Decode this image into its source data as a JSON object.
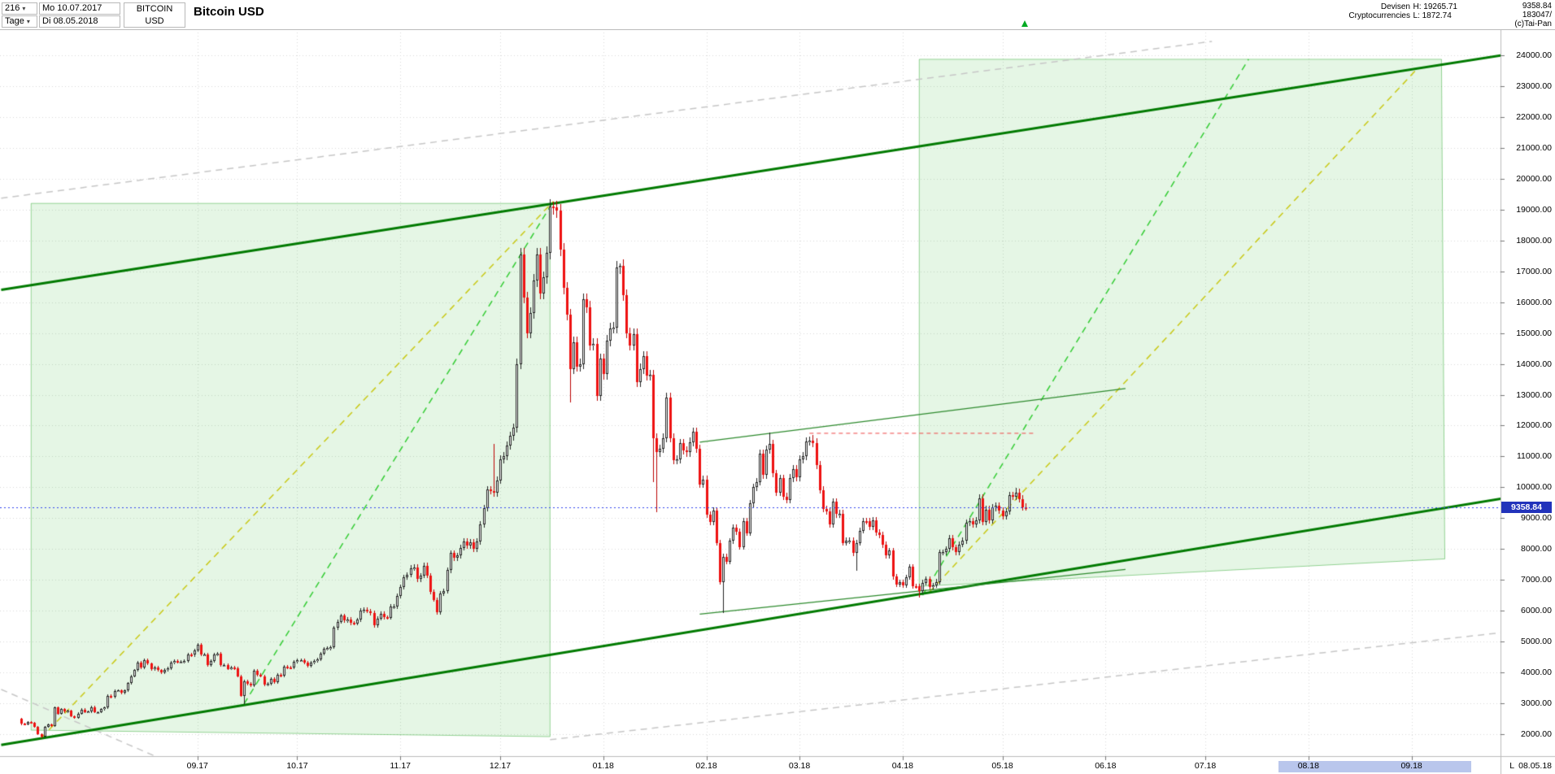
{
  "header": {
    "period": "216",
    "timeframe": "Tage",
    "start_date": "Mo 10.07.2017",
    "end_date": "Di 08.05.2018",
    "symbol": "BITCOIN",
    "currency": "USD",
    "title": "Bitcoin USD",
    "category": "Devisen",
    "subcategory": "Cryptocurrencies",
    "high_label": "H: 19265.71",
    "low_label": "L: 1872.74",
    "last_price": "9358.84",
    "volume_text": "183047/",
    "copyright": "(c)Tai-Pan"
  },
  "axes": {
    "price_ticks": [
      "24000.00",
      "23000.00",
      "22000.00",
      "21000.00",
      "20000.00",
      "19000.00",
      "18000.00",
      "17000.00",
      "16000.00",
      "15000.00",
      "14000.00",
      "13000.00",
      "12000.00",
      "11000.00",
      "10000.00",
      "9000.00",
      "8000.00",
      "7000.00",
      "6000.00",
      "5000.00",
      "4000.00",
      "3000.00",
      "2000.00"
    ],
    "current_price_label": "9358.84",
    "time_ticks": [
      {
        "label": "09.17",
        "day": 53
      },
      {
        "label": "10.17",
        "day": 83
      },
      {
        "label": "11.17",
        "day": 114
      },
      {
        "label": "12.17",
        "day": 144
      },
      {
        "label": "01.18",
        "day": 175
      },
      {
        "label": "02.18",
        "day": 206
      },
      {
        "label": "03.18",
        "day": 234
      },
      {
        "label": "04.18",
        "day": 265
      },
      {
        "label": "05.18",
        "day": 295
      },
      {
        "label": "06.18",
        "day": 326
      },
      {
        "label": "07.18",
        "day": 356
      },
      {
        "label": "08.18",
        "day": 387
      },
      {
        "label": "09.18",
        "day": 418
      }
    ],
    "range_highlight": {
      "start_day": 378,
      "end_day": 436
    },
    "corner_label": "L",
    "corner_date": "08.05.18"
  },
  "chart_data": {
    "type": "candlestick",
    "title": "Bitcoin USD",
    "period_start": "10.07.2017",
    "period_end": "08.05.2018",
    "timeframe": "daily",
    "overall_high": 19265.71,
    "overall_low": 1872.74,
    "last_close": 9358.84,
    "ylim": [
      2000,
      24000
    ],
    "first_open": 2506,
    "closes": [
      2330,
      2320,
      2390,
      2360,
      2230,
      1995,
      1910,
      2230,
      2320,
      2270,
      2860,
      2670,
      2810,
      2730,
      2760,
      2580,
      2530,
      2670,
      2800,
      2720,
      2730,
      2880,
      2710,
      2710,
      2810,
      2860,
      3250,
      3210,
      3400,
      3420,
      3340,
      3420,
      3650,
      3880,
      4070,
      4330,
      4160,
      4390,
      4280,
      4110,
      4160,
      4070,
      4000,
      4090,
      4140,
      4330,
      4360,
      4340,
      4350,
      4380,
      4580,
      4570,
      4710,
      4900,
      4580,
      4580,
      4230,
      4380,
      4580,
      4600,
      4230,
      4230,
      4120,
      4160,
      4130,
      3880,
      3250,
      3710,
      3630,
      3580,
      4060,
      3920,
      3880,
      3600,
      3630,
      3790,
      3680,
      3930,
      3890,
      4200,
      4170,
      4160,
      4340,
      4400,
      4400,
      4320,
      4220,
      4320,
      4370,
      4430,
      4610,
      4770,
      4780,
      4820,
      5440,
      5640,
      5840,
      5680,
      5720,
      5600,
      5590,
      5710,
      6010,
      6030,
      5990,
      5930,
      5530,
      5750,
      5900,
      5790,
      5780,
      6130,
      6130,
      6470,
      6770,
      7080,
      7160,
      7380,
      7410,
      7020,
      7140,
      7460,
      7140,
      6620,
      6360,
      5950,
      6560,
      6640,
      7310,
      7870,
      7710,
      7790,
      8040,
      8250,
      8100,
      8230,
      8010,
      8250,
      8790,
      9330,
      9920,
      9880,
      9820,
      10230,
      10900,
      11000,
      11350,
      11660,
      11920,
      14000,
      17550,
      16150,
      15000,
      15650,
      16700,
      17550,
      16290,
      16800,
      17600,
      19100,
      19065,
      18960,
      17700,
      16460,
      15600,
      13830,
      14700,
      13920,
      14000,
      16100,
      15840,
      14600,
      14650,
      12950,
      14160,
      13660,
      14750,
      15160,
      15180,
      17130,
      17170,
      16230,
      15000,
      14600,
      14970,
      13400,
      13840,
      14240,
      13630,
      13650,
      11600,
      11130,
      11250,
      11600,
      12900,
      11600,
      10870,
      10900,
      11430,
      11200,
      11130,
      11470,
      11790,
      11250,
      10100,
      10250,
      9120,
      8870,
      9250,
      8200,
      6940,
      7750,
      7590,
      8260,
      8690,
      8560,
      8070,
      8900,
      8520,
      9470,
      10000,
      10180,
      11100,
      10400,
      11220,
      11400,
      10450,
      9830,
      10290,
      9700,
      9590,
      10300,
      10590,
      10330,
      10910,
      11020,
      11490,
      11510,
      11440,
      10730,
      9910,
      9300,
      9230,
      8790,
      9530,
      9130,
      9150,
      8200,
      8270,
      8280,
      7870,
      8200,
      8600,
      8910,
      8900,
      8720,
      8930,
      8540,
      8450,
      8140,
      7790,
      7950,
      7100,
      6840,
      6930,
      6820,
      7080,
      7420,
      6800,
      6790,
      6630,
      6910,
      7020,
      6770,
      6830,
      6940,
      7890,
      7890,
      8000,
      8350,
      8050,
      7890,
      8150,
      8270,
      8860,
      8900,
      8800,
      8930,
      9650,
      8870,
      9280,
      8940,
      9340,
      9400,
      9240,
      9070,
      9220,
      9740,
      9700,
      9830,
      9620,
      9360,
      9358.84
    ],
    "wick_high_overrides": {
      "142": 11400,
      "160": 19265.71,
      "180": 17253,
      "225": 11780,
      "238": 11700,
      "299": 9990
    },
    "wick_low_overrides": {
      "6": 1872.74,
      "67": 2980,
      "165": 12760,
      "190": 10160,
      "191": 9200,
      "211": 5920,
      "251": 7300,
      "270": 6430
    },
    "default_wick_pct": 0.012,
    "overlays": {
      "channel_lines": [
        {
          "name": "upper-trend-channel",
          "from": [
            -6,
            16400
          ],
          "to": [
            445,
            24000
          ]
        },
        {
          "name": "lower-trend-channel",
          "from": [
            -6,
            1650
          ],
          "to": [
            445,
            9630
          ]
        }
      ],
      "regions": [
        {
          "name": "left-projection-zone",
          "points": [
            [
              3,
              19200
            ],
            [
              159,
              19200
            ],
            [
              159,
              1920
            ],
            [
              3,
              2130
            ]
          ]
        },
        {
          "name": "right-projection-zone",
          "points": [
            [
              270,
              23870
            ],
            [
              427,
              23870
            ],
            [
              428,
              7680
            ],
            [
              270,
              6790
            ]
          ]
        }
      ],
      "dashed_lines": [
        {
          "name": "yellow-fan-left",
          "color": "#c8c814",
          "from": [
            6,
            1872.74
          ],
          "to": [
            160,
            19265.71
          ]
        },
        {
          "name": "green-fan-left",
          "color": "#33cc33",
          "from": [
            67,
            2980
          ],
          "to": [
            160,
            19265.71
          ]
        },
        {
          "name": "green-fan-right",
          "color": "#33cc33",
          "from": [
            271,
            6500
          ],
          "to": [
            369,
            23870
          ]
        },
        {
          "name": "yellow-fan-right",
          "color": "#c8c814",
          "from": [
            273,
            6600
          ],
          "to": [
            420,
            23600
          ]
        },
        {
          "name": "gray-parallel-top",
          "color": "#c6c6c6",
          "from": [
            -6,
            19370
          ],
          "to": [
            358,
            24450
          ]
        },
        {
          "name": "gray-parallel-bottom",
          "color": "#c6c6c6",
          "from": [
            159,
            1820
          ],
          "to": [
            445,
            5290
          ]
        },
        {
          "name": "gray-corner",
          "color": "#c6c6c6",
          "from": [
            -6,
            3450
          ],
          "to": [
            40,
            1300
          ]
        }
      ],
      "minor_lines": [
        {
          "name": "consolidation-upper",
          "color": "#2d8a2d",
          "from": [
            204,
            11460
          ],
          "to": [
            332,
            13200
          ]
        },
        {
          "name": "consolidation-lower",
          "color": "#2d8a2d",
          "from": [
            204,
            5890
          ],
          "to": [
            332,
            7340
          ]
        }
      ],
      "red_dashed_line": {
        "name": "resistance-level",
        "color": "#ee4444",
        "price": 11750,
        "from_day": 237,
        "to_day": 305
      },
      "current_price_line": {
        "price": 9358.84,
        "color": "#3344ee"
      }
    },
    "colors": {
      "up_fill": "#ffffff",
      "up_stroke": "#222222",
      "down_fill": "#ee1111",
      "down_stroke": "#bb0000",
      "channel": "#007a00",
      "region_fill": "rgba(0,170,0,0.10)",
      "region_stroke": "rgba(0,150,0,0.40)",
      "grid": "#d8d8d8",
      "axis_text": "#000000",
      "badge_bg": "#2233bb",
      "badge_text": "#ffffff",
      "highlight_bg": "#b9c6ec"
    }
  }
}
